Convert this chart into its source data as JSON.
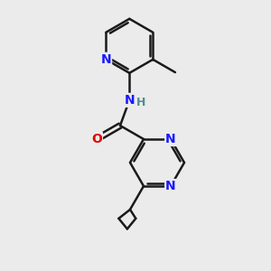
{
  "bg_color": "#ebebeb",
  "bond_color": "#1a1a1a",
  "N_color": "#1919ff",
  "O_color": "#e80000",
  "H_color": "#4f8f8f",
  "line_width": 1.8,
  "figsize": [
    3.0,
    3.0
  ],
  "dpi": 100,
  "xlim": [
    0,
    10
  ],
  "ylim": [
    0,
    10
  ],
  "font_size": 10
}
